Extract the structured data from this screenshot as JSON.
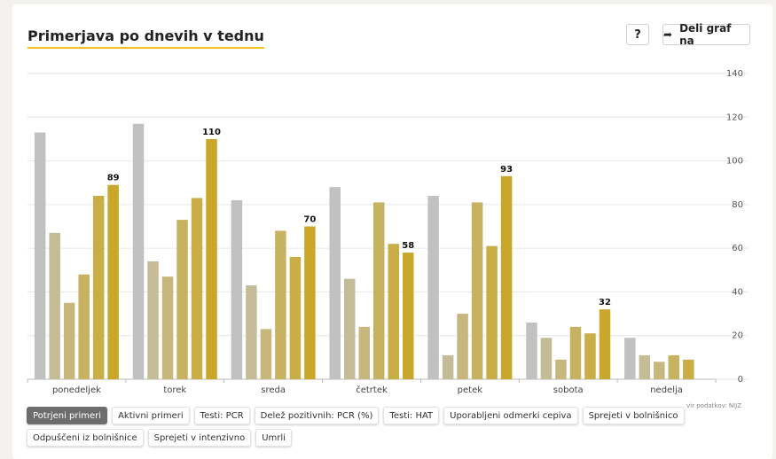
{
  "header": {
    "title": "Primerjava po dnevih v tednu",
    "help_label": "?",
    "share_label": "Deli graf na",
    "share_icon": "share-arrow-icon"
  },
  "source": "vir podatkov: NIJZ",
  "tabs": [
    {
      "label": "Potrjeni primeri",
      "active": true
    },
    {
      "label": "Aktivni primeri",
      "active": false
    },
    {
      "label": "Testi: PCR",
      "active": false
    },
    {
      "label": "Delež pozitivnih: PCR (%)",
      "active": false
    },
    {
      "label": "Testi: HAT",
      "active": false
    },
    {
      "label": "Uporabljeni odmerki cepiva",
      "active": false
    },
    {
      "label": "Sprejeti v bolnišnico",
      "active": false
    },
    {
      "label": "Odpuščeni iz bolnišnice",
      "active": false
    },
    {
      "label": "Sprejeti v intenzivno",
      "active": false
    },
    {
      "label": "Umrli",
      "active": false
    }
  ],
  "chart_data": {
    "type": "bar",
    "categories": [
      "ponedeljek",
      "torek",
      "sreda",
      "četrtek",
      "petek",
      "sobota",
      "nedelja"
    ],
    "series": [
      {
        "values": [
          113,
          117,
          82,
          88,
          84,
          26,
          19
        ]
      },
      {
        "values": [
          67,
          54,
          43,
          46,
          11,
          19,
          11
        ]
      },
      {
        "values": [
          35,
          47,
          23,
          24,
          30,
          9,
          8
        ]
      },
      {
        "values": [
          48,
          73,
          68,
          81,
          81,
          24,
          11
        ]
      },
      {
        "values": [
          84,
          83,
          56,
          62,
          61,
          21,
          9
        ]
      },
      {
        "values": [
          89,
          110,
          70,
          58,
          93,
          32,
          null
        ]
      }
    ],
    "data_labels": [
      89,
      110,
      70,
      58,
      93,
      32,
      null
    ],
    "colors": [
      "#c1c1c1",
      "#c4bc97",
      "#c7b77c",
      "#c7b262",
      "#c9ae47",
      "#c8a72a"
    ],
    "yticks": [
      0,
      20,
      40,
      60,
      80,
      100,
      120,
      140
    ],
    "ylim": [
      0,
      140
    ],
    "yaxis_position": "right",
    "grid": true,
    "title": "",
    "xlabel": "",
    "ylabel": ""
  }
}
